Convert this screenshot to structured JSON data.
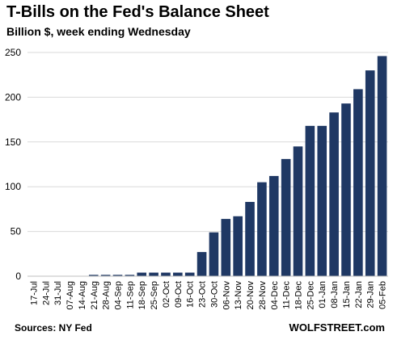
{
  "chart_data": {
    "type": "bar",
    "title": "T-Bills on the Fed's Balance Sheet",
    "subtitle": "Billion $, week ending Wednesday",
    "xlabel": "",
    "ylabel": "",
    "ylim": [
      0,
      250
    ],
    "yticks": [
      0,
      50,
      100,
      150,
      200,
      250
    ],
    "grid": "horizontal",
    "categories": [
      "17-Jul",
      "24-Jul",
      "31-Jul",
      "07-Aug",
      "14-Aug",
      "21-Aug",
      "28-Aug",
      "04-Sep",
      "11-Sep",
      "18-Sep",
      "25-Sep",
      "02-Oct",
      "09-Oct",
      "16-Oct",
      "23-Oct",
      "30-Oct",
      "06-Nov",
      "13-Nov",
      "20-Nov",
      "28-Nov",
      "04-Dec",
      "11-Dec",
      "18-Dec",
      "25-Dec",
      "01-Jan",
      "08-Jan",
      "15-Jan",
      "22-Jan",
      "29-Jan",
      "05-Feb"
    ],
    "values": [
      0,
      0,
      0,
      0,
      0,
      1.5,
      1.5,
      1.5,
      1.5,
      4,
      4,
      4,
      4,
      4,
      27,
      49,
      64,
      67,
      83,
      105,
      112,
      131,
      145,
      168,
      168,
      183,
      193,
      209,
      230,
      246
    ],
    "bar_color": "#1f3864",
    "source": "Sources: NY Fed",
    "credit": "WOLFSTREET.com"
  }
}
